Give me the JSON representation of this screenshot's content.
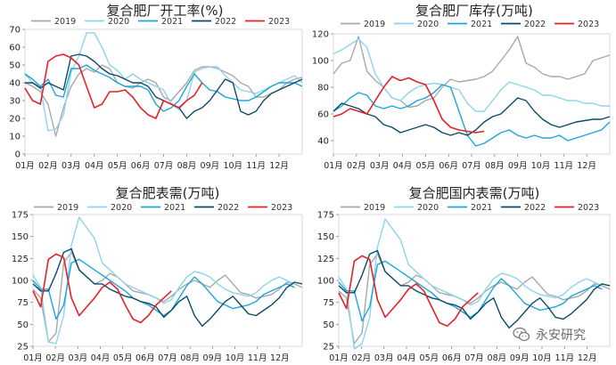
{
  "colors": {
    "2019": "#a8a8a8",
    "2020": "#8fd3ef",
    "2021": "#1ba6d8",
    "2022": "#0b4a66",
    "2023": "#e32129"
  },
  "watermark": {
    "text": "永安研究",
    "icon": "wechat-icon"
  },
  "chart_data": [
    {
      "type": "line",
      "title": "复合肥厂开工率(%)",
      "ylim": [
        0,
        70
      ],
      "yticks": [
        "0",
        "10",
        "20",
        "30",
        "40",
        "50",
        "60",
        "70"
      ],
      "xticks": [
        "01月",
        "02月",
        "03月",
        "04月",
        "05月",
        "06月",
        "07月",
        "08月",
        "09月",
        "10月",
        "11月",
        "12月"
      ],
      "legend": [
        "2019",
        "2020",
        "2021",
        "2022",
        "2023"
      ],
      "series": [
        {
          "name": "2019",
          "values": [
            40,
            38,
            35,
            28,
            10,
            26,
            38,
            45,
            48,
            46,
            50,
            48,
            40,
            38,
            37,
            40,
            42,
            40,
            32,
            30,
            35,
            40,
            47,
            49,
            49,
            48,
            46,
            44,
            40,
            38,
            32,
            32,
            34,
            36,
            40,
            42,
            43
          ]
        },
        {
          "name": "2020",
          "values": [
            45,
            40,
            38,
            13,
            14,
            22,
            46,
            55,
            68,
            68,
            60,
            50,
            47,
            42,
            45,
            42,
            40,
            38,
            36,
            28,
            25,
            30,
            46,
            48,
            49,
            49,
            44,
            40,
            36,
            35,
            34,
            36,
            38,
            40,
            42,
            44,
            40
          ]
        },
        {
          "name": "2021",
          "values": [
            45,
            42,
            38,
            42,
            33,
            32,
            48,
            48,
            50,
            47,
            45,
            43,
            40,
            38,
            38,
            38,
            36,
            28,
            24,
            26,
            30,
            38,
            45,
            40,
            36,
            35,
            32,
            31,
            30,
            30,
            32,
            35,
            38,
            40,
            40,
            40,
            38
          ]
        },
        {
          "name": "2022",
          "values": [
            40,
            40,
            37,
            40,
            38,
            36,
            55,
            56,
            55,
            52,
            48,
            45,
            44,
            42,
            40,
            40,
            38,
            32,
            30,
            28,
            26,
            20,
            24,
            26,
            30,
            36,
            42,
            40,
            24,
            22,
            24,
            30,
            34,
            36,
            38,
            40,
            42
          ]
        },
        {
          "name": "2023",
          "values": [
            37,
            30,
            28,
            52,
            55,
            56,
            54,
            50,
            38,
            26,
            28,
            35,
            35,
            36,
            32,
            26,
            22,
            20,
            30,
            28,
            26,
            30,
            33,
            40
          ]
        }
      ]
    },
    {
      "type": "line",
      "title": "复合肥厂库存(万吨)",
      "ylim": [
        30,
        120
      ],
      "yticks": [
        "40",
        "60",
        "80",
        "100",
        "120"
      ],
      "xticks": [
        "01月",
        "02月",
        "03月",
        "04月",
        "05月",
        "06月",
        "07月",
        "08月",
        "09月",
        "10月",
        "11月",
        "12月"
      ],
      "legend": [
        "2019",
        "2020",
        "2021",
        "2022",
        "2023"
      ],
      "series": [
        {
          "name": "2019",
          "values": [
            90,
            98,
            100,
            118,
            92,
            85,
            80,
            72,
            70,
            65,
            66,
            70,
            72,
            80,
            86,
            84,
            85,
            86,
            88,
            92,
            100,
            108,
            118,
            98,
            95,
            90,
            88,
            88,
            86,
            88,
            90,
            100,
            102,
            104
          ]
        },
        {
          "name": "2020",
          "values": [
            105,
            108,
            112,
            116,
            110,
            90,
            80,
            72,
            70,
            76,
            80,
            82,
            83,
            82,
            80,
            78,
            68,
            62,
            62,
            70,
            78,
            84,
            82,
            80,
            78,
            74,
            74,
            72,
            70,
            70,
            68,
            68,
            66,
            66
          ]
        },
        {
          "name": "2021",
          "values": [
            62,
            66,
            72,
            76,
            74,
            66,
            64,
            66,
            64,
            66,
            70,
            72,
            76,
            82,
            80,
            62,
            44,
            36,
            38,
            42,
            46,
            48,
            44,
            42,
            44,
            42,
            42,
            44,
            40,
            42,
            44,
            46,
            48,
            54
          ]
        },
        {
          "name": "2022",
          "values": [
            62,
            68,
            66,
            64,
            60,
            58,
            52,
            50,
            46,
            48,
            50,
            52,
            50,
            46,
            44,
            46,
            44,
            48,
            54,
            58,
            60,
            66,
            72,
            70,
            62,
            56,
            52,
            50,
            52,
            54,
            55,
            56,
            56,
            58
          ]
        },
        {
          "name": "2023",
          "values": [
            58,
            60,
            64,
            62,
            60,
            70,
            80,
            88,
            85,
            87,
            84,
            82,
            70,
            56,
            50,
            48,
            47,
            46,
            47
          ]
        }
      ]
    },
    {
      "type": "line",
      "title": "复合肥表需(万吨)",
      "ylim": [
        25,
        175
      ],
      "yticks": [
        "25",
        "50",
        "75",
        "100",
        "125",
        "150",
        "175"
      ],
      "xticks": [
        "01月",
        "02月",
        "03月",
        "04月",
        "05月",
        "06月",
        "07月",
        "08月",
        "09月",
        "10月",
        "11月",
        "12月"
      ],
      "legend": [
        "2019",
        "2020",
        "2021",
        "2022",
        "2023"
      ],
      "series": [
        {
          "name": "2019",
          "values": [
            90,
            80,
            30,
            40,
            120,
            132,
            112,
            104,
            96,
            100,
            108,
            104,
            96,
            88,
            86,
            84,
            80,
            76,
            82,
            90,
            96,
            100,
            96,
            92,
            100,
            106,
            96,
            86,
            84,
            80,
            82,
            84,
            90,
            98,
            96,
            92
          ]
        },
        {
          "name": "2020",
          "values": [
            106,
            92,
            30,
            28,
            60,
            140,
            172,
            160,
            148,
            120,
            112,
            104,
            96,
            92,
            88,
            84,
            80,
            74,
            78,
            92,
            104,
            110,
            108,
            104,
            96,
            90,
            86,
            84,
            82,
            86,
            94,
            100,
            104,
            100,
            96
          ]
        },
        {
          "name": "2021",
          "values": [
            100,
            90,
            90,
            56,
            72,
            120,
            124,
            118,
            112,
            106,
            100,
            94,
            88,
            80,
            76,
            72,
            66,
            60,
            66,
            80,
            94,
            104,
            96,
            86,
            76,
            72,
            68,
            70,
            72,
            76,
            84,
            88,
            92,
            96,
            92
          ]
        },
        {
          "name": "2022",
          "values": [
            96,
            88,
            88,
            108,
            132,
            136,
            112,
            104,
            96,
            96,
            90,
            86,
            82,
            80,
            76,
            74,
            70,
            58,
            66,
            76,
            82,
            60,
            48,
            56,
            66,
            76,
            82,
            72,
            62,
            60,
            66,
            72,
            80,
            92,
            98,
            96
          ]
        },
        {
          "name": "2023",
          "values": [
            88,
            70,
            124,
            130,
            126,
            80,
            60,
            70,
            80,
            92,
            98,
            90,
            72,
            56,
            52,
            60,
            72,
            80,
            88
          ]
        }
      ]
    },
    {
      "type": "line",
      "title": "复合肥国内表需(万吨)",
      "ylim": [
        25,
        175
      ],
      "yticks": [
        "25",
        "50",
        "75",
        "100",
        "125",
        "150",
        "175"
      ],
      "xticks": [
        "01月",
        "02月",
        "03月",
        "04月",
        "05月",
        "06月",
        "07月",
        "08月",
        "09月",
        "10月",
        "11月",
        "12月"
      ],
      "legend": [
        "2019",
        "2020",
        "2021",
        "2022",
        "2023"
      ],
      "series": [
        {
          "name": "2019",
          "values": [
            88,
            80,
            28,
            40,
            118,
            130,
            110,
            102,
            94,
            98,
            106,
            102,
            94,
            86,
            84,
            82,
            78,
            74,
            80,
            88,
            94,
            98,
            94,
            90,
            98,
            104,
            94,
            84,
            82,
            78,
            80,
            82,
            88,
            96,
            94,
            90
          ]
        },
        {
          "name": "2020",
          "values": [
            104,
            90,
            22,
            28,
            58,
            138,
            170,
            158,
            146,
            118,
            110,
            102,
            94,
            90,
            86,
            82,
            78,
            72,
            76,
            90,
            102,
            108,
            106,
            102,
            94,
            88,
            84,
            82,
            80,
            84,
            92,
            98,
            102,
            98,
            94
          ]
        },
        {
          "name": "2021",
          "values": [
            98,
            88,
            88,
            54,
            70,
            118,
            122,
            116,
            110,
            104,
            98,
            92,
            86,
            78,
            74,
            70,
            64,
            58,
            64,
            78,
            92,
            102,
            94,
            84,
            74,
            70,
            66,
            68,
            70,
            74,
            82,
            86,
            90,
            94,
            90
          ]
        },
        {
          "name": "2022",
          "values": [
            94,
            86,
            86,
            106,
            130,
            134,
            110,
            102,
            94,
            94,
            88,
            84,
            80,
            78,
            74,
            72,
            68,
            56,
            64,
            74,
            80,
            58,
            46,
            54,
            64,
            74,
            80,
            70,
            58,
            56,
            62,
            70,
            78,
            90,
            96,
            94
          ]
        },
        {
          "name": "2023",
          "values": [
            86,
            68,
            122,
            128,
            124,
            78,
            58,
            68,
            78,
            90,
            96,
            88,
            70,
            52,
            48,
            56,
            70,
            78,
            86
          ]
        }
      ]
    }
  ]
}
